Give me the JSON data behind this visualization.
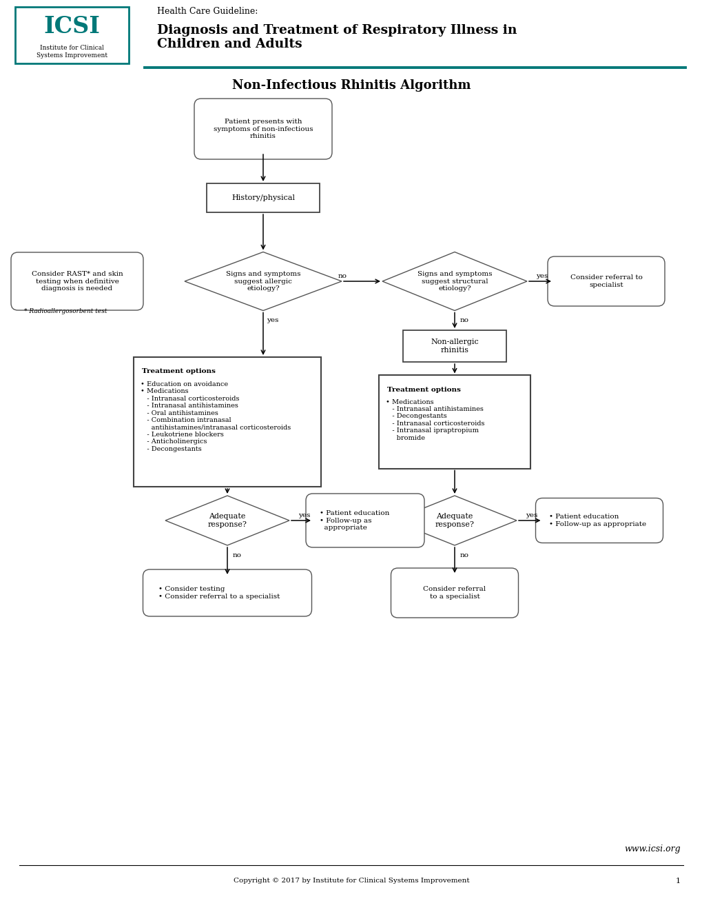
{
  "title_hcg": "Health Care Guideline:",
  "title_main": "Diagnosis and Treatment of Respiratory Illness in\nChildren and Adults",
  "subtitle": "Non-Infectious Rhinitis Algorithm",
  "teal": "#007878",
  "dark_gray": "#333333",
  "med_gray": "#555555",
  "white": "#ffffff",
  "footer_copyright": "Copyright © 2017 by Institute for Clinical Systems Improvement",
  "footer_page": "1",
  "website": "www.icsi.org",
  "node_patient_presents": "Patient presents with\nsymptoms of non-infectious\nrhinitis",
  "node_history": "History/physical",
  "node_allergic_q": "Signs and symptoms\nsuggest allergic\netiology?",
  "node_structural_q": "Signs and symptoms\nsuggest structural\netiology?",
  "node_specialist": "Consider referral to\nspecialist",
  "node_non_allergic": "Non-allergic\nrhinitis",
  "node_rast": "Consider RAST* and skin\ntesting when definitive\ndiagnosis is needed",
  "node_rast_footnote": "* Radioallergosorbent test",
  "node_treatment1_title": "Treatment options",
  "node_treatment1_body": "• Education on avoidance\n• Medications\n   - Intranasal corticosteroids\n   - Intranasal antihistamines\n   - Oral antihistamines\n   - Combination intranasal\n     antihistamines/intranasal corticosteroids\n   - Leukotriene blockers\n   - Anticholinergics\n   - Decongestants",
  "node_treatment2_title": "Treatment options",
  "node_treatment2_body": "• Medications\n   - Intranasal antihistamines\n   - Decongestants\n   - Intranasal corticosteroids\n   - Intranasal ipraptropium\n     bromide",
  "node_adequate1": "Adequate\nresponse?",
  "node_adequate2": "Adequate\nresponse?",
  "node_patient_ed1": "• Patient education\n• Follow-up as\n  appropriate",
  "node_patient_ed2": "• Patient education\n• Follow-up as appropriate",
  "node_consider_testing": "• Consider testing\n• Consider referral to a specialist",
  "node_consider_referral": "Consider referral\nto a specialist"
}
